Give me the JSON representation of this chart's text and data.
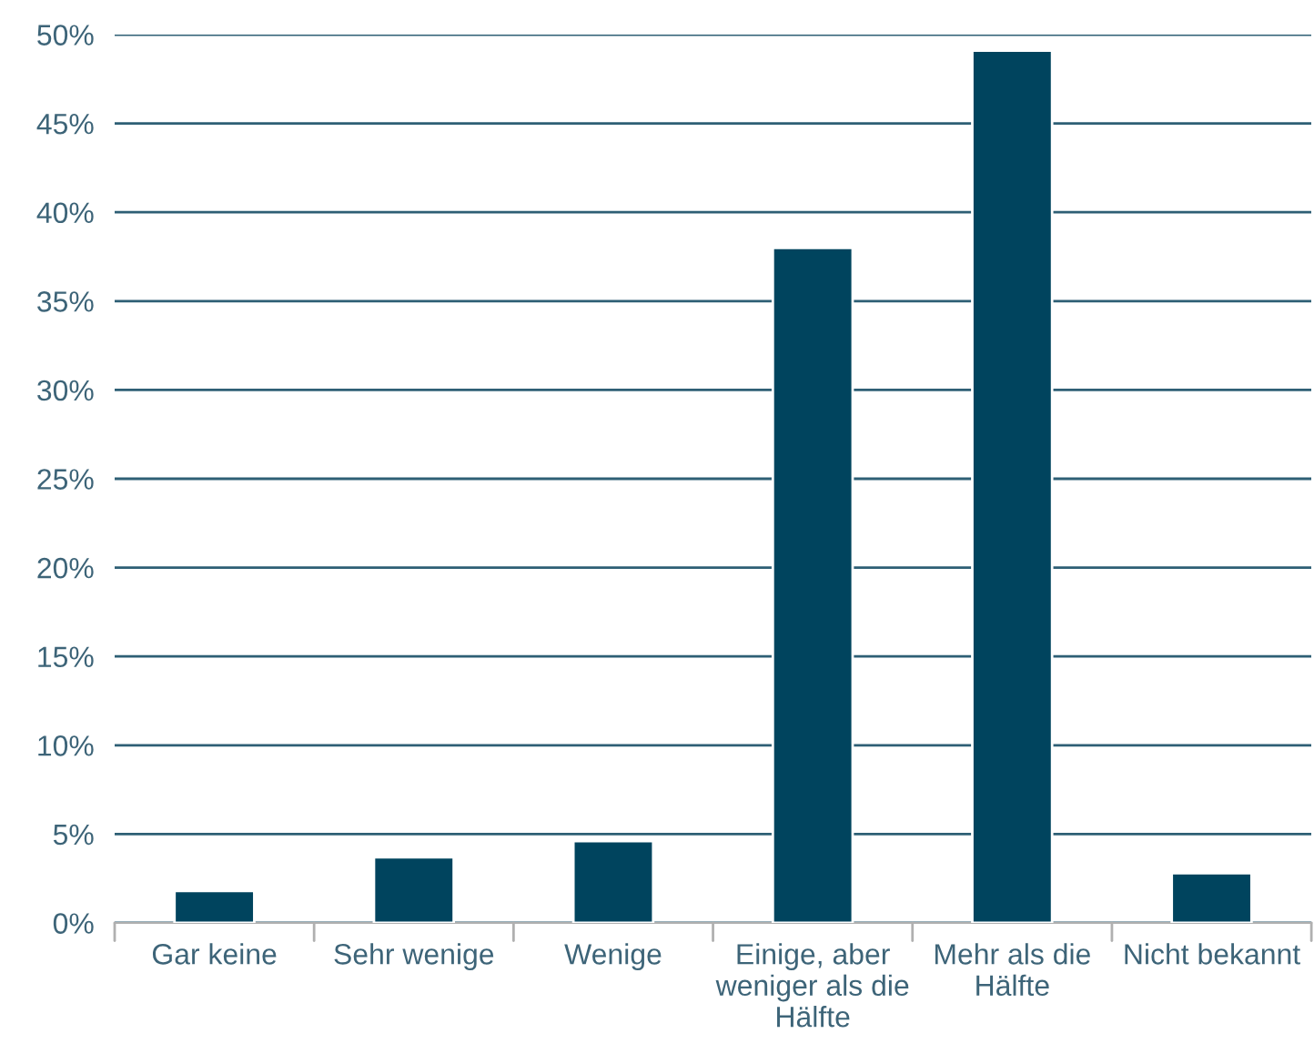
{
  "chart_data": {
    "type": "bar",
    "categories": [
      "Gar keine",
      "Sehr wenige",
      "Wenige",
      "Einige, aber\nweniger als die\nHälfte",
      "Mehr als die\nHälfte",
      "Nicht bekannt"
    ],
    "values": [
      1.8,
      3.7,
      4.6,
      38.0,
      49.1,
      2.8
    ],
    "color": "#00445e",
    "ylim": [
      0,
      50
    ],
    "yticks": [
      {
        "value": 0,
        "label": "0%"
      },
      {
        "value": 5,
        "label": "5%"
      },
      {
        "value": 10,
        "label": "10%"
      },
      {
        "value": 15,
        "label": "15%"
      },
      {
        "value": 20,
        "label": "20%"
      },
      {
        "value": 25,
        "label": "25%"
      },
      {
        "value": 30,
        "label": "30%"
      },
      {
        "value": 35,
        "label": "35%"
      },
      {
        "value": 40,
        "label": "40%"
      },
      {
        "value": 45,
        "label": "45%"
      },
      {
        "value": 50,
        "label": "50%"
      }
    ],
    "grid": "y"
  }
}
